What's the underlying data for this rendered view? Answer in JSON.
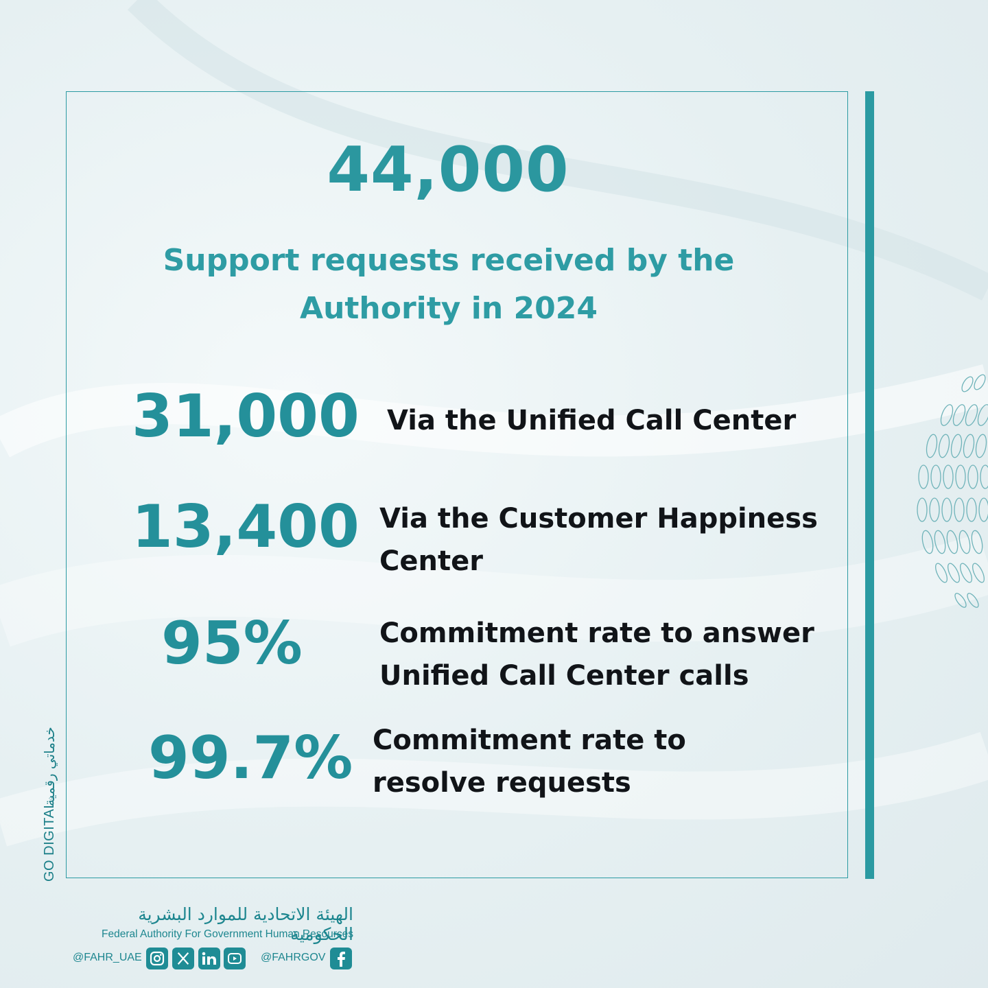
{
  "headline": {
    "value": "44,000",
    "caption": "Support requests received by the Authority in 2024"
  },
  "stats": [
    {
      "value": "31,000",
      "label_line1": "Via the Unified Call Center",
      "label_line2": ""
    },
    {
      "value": "13,400",
      "label_line1": "Via the Customer Happiness",
      "label_line2": "Center"
    },
    {
      "value": "95%",
      "label_line1": "Commitment rate to answer",
      "label_line2": "Unified Call Center calls"
    },
    {
      "value": "99.7%",
      "label_line1": "Commitment rate to",
      "label_line2": "resolve requests"
    }
  ],
  "side_logo": {
    "english": "GO DIGITAL",
    "arabic": "خدماتي رقمية"
  },
  "footer": {
    "org_name_ar": "الهيئة الاتحادية للموارد البشرية الحكومية",
    "org_name_en": "Federal Authority For Government Human Resources",
    "handle_primary": "@FAHR_UAE",
    "handle_secondary": "@FAHRGOV",
    "social_icons": [
      "instagram-icon",
      "x-icon",
      "linkedin-icon",
      "youtube-icon",
      "facebook-icon"
    ]
  },
  "colors": {
    "accent": "#2b9aa2",
    "number_teal": "#24909a",
    "label_dark": "#111418"
  }
}
